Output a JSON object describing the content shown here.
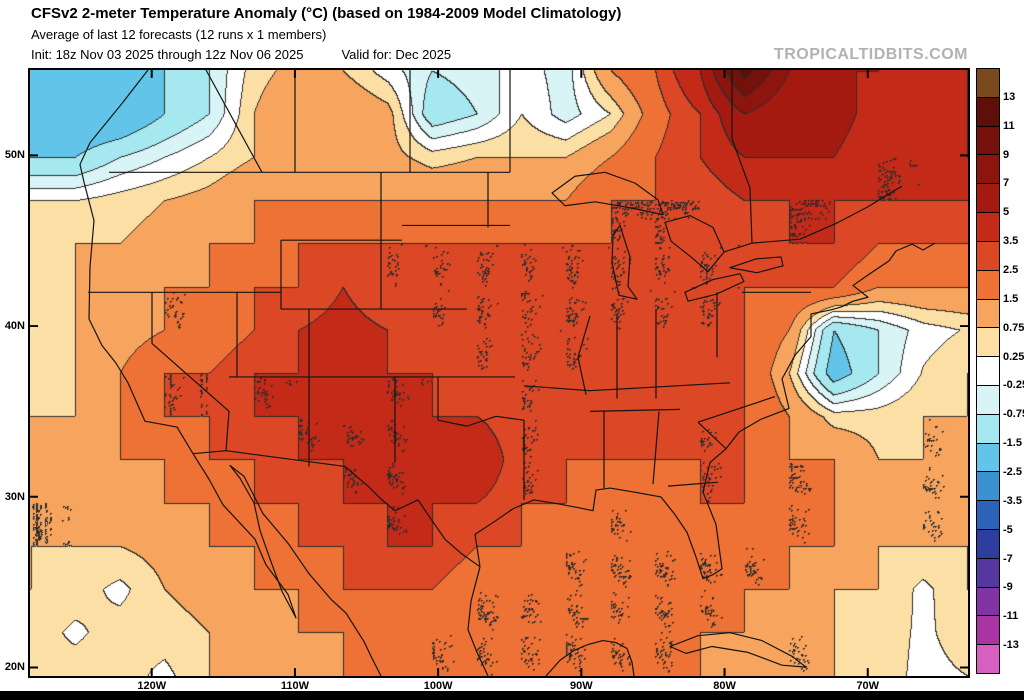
{
  "header": {
    "title": "CFSv2 2-meter Temperature Anomaly (°C) (based on 1984-2009 Model Climatology)",
    "subtitle": "Average of last 12 forecasts (12 runs x 1 members)",
    "init_line": "Init: 18z Nov 03 2025 through 12z Nov 06 2025",
    "valid_line": "Valid for: Dec 2025",
    "watermark": "TROPICALTIDBITS.COM"
  },
  "axes": {
    "lat_ticks": [
      "50N",
      "40N",
      "30N",
      "20N"
    ],
    "lat_values": [
      50,
      40,
      30,
      20
    ],
    "lon_ticks": [
      "120W",
      "110W",
      "100W",
      "90W",
      "80W",
      "70W"
    ],
    "lon_values": [
      -120,
      -110,
      -100,
      -90,
      -80,
      -70
    ]
  },
  "colorbar": {
    "labels": [
      "13",
      "11",
      "9",
      "7",
      "5",
      "3.5",
      "2.5",
      "1.5",
      "0.75",
      "0.25",
      "-0.25",
      "-0.75",
      "-1.5",
      "-2.5",
      "-3.5",
      "-5",
      "-7",
      "-9",
      "-11",
      "-13"
    ],
    "colors": [
      "#7a4a1e",
      "#5e0f07",
      "#73110a",
      "#8c150d",
      "#a51a10",
      "#c32a18",
      "#dc4726",
      "#ee7135",
      "#f7a55e",
      "#fbdfa4",
      "#ffffff",
      "#d9f4f6",
      "#a5e8ef",
      "#62c4e8",
      "#3a92d0",
      "#2c63b8",
      "#2e3e9e",
      "#55379f",
      "#8135a5",
      "#ab34a4",
      "#d75fc0"
    ]
  },
  "chart_data": {
    "type": "heatmap",
    "title": "CFSv2 2-meter Temperature Anomaly (°C) (based on 1984-2009 Model Climatology)",
    "subtitle": "Average of last 12 forecasts (12 runs x 1 members)",
    "init": "18z Nov 03 2025 through 12z Nov 06 2025",
    "valid": "Dec 2025",
    "units": "°C",
    "region": "CONUS / North America",
    "lon_range": [
      -128.5,
      -63.0
    ],
    "lat_range": [
      19.5,
      55.0
    ],
    "levels": [
      13,
      11,
      9,
      7,
      5,
      3.5,
      2.5,
      1.5,
      0.75,
      0.25,
      -0.25,
      -0.75,
      -1.5,
      -2.5,
      -3.5,
      -5,
      -7,
      -9,
      -11,
      -13
    ],
    "palette": [
      "#7a4a1e",
      "#5e0f07",
      "#73110a",
      "#8c150d",
      "#a51a10",
      "#c32a18",
      "#dc4726",
      "#ee7135",
      "#f7a55e",
      "#fbdfa4",
      "#ffffff",
      "#d9f4f6",
      "#a5e8ef",
      "#62c4e8",
      "#3a92d0",
      "#2c63b8",
      "#2e3e9e",
      "#55379f",
      "#8135a5",
      "#ab34a4",
      "#d75fc0"
    ],
    "grid_nx": 22,
    "grid_ny": 15,
    "grid_order": "rows north to south, columns west to east",
    "values": [
      [
        -2.5,
        -2.5,
        -2,
        -1.5,
        -0.75,
        0.5,
        1,
        0.75,
        0,
        -0.75,
        -0.5,
        0,
        -0.5,
        1.5,
        2.5,
        5,
        12,
        7,
        5,
        5,
        4,
        5
      ],
      [
        -2,
        -2.5,
        -2.5,
        -1.5,
        -0.75,
        0.75,
        1.5,
        1.5,
        1,
        -1.25,
        -0.75,
        0.25,
        -0.5,
        0.25,
        2,
        3.5,
        7,
        5,
        6,
        4,
        4,
        5
      ],
      [
        -1.5,
        -1.5,
        -0.75,
        -0.25,
        0.25,
        0.75,
        1,
        1,
        1,
        0.5,
        0.75,
        0.75,
        0.75,
        1.5,
        2.5,
        3.5,
        5,
        5,
        5,
        3.5,
        3.5,
        5
      ],
      [
        0.25,
        0.25,
        0.5,
        0.75,
        1,
        1.5,
        1.5,
        1.5,
        1.5,
        1.5,
        1.5,
        1.5,
        1.5,
        2.5,
        2.5,
        2.5,
        3.5,
        3.5,
        3.5,
        3.5,
        3.5,
        3.5
      ],
      [
        0.5,
        0.75,
        0.75,
        1,
        1.5,
        1.5,
        2.5,
        2.5,
        2.5,
        2.5,
        2.5,
        2.5,
        2.5,
        2.5,
        2.5,
        2.5,
        2.5,
        3.5,
        3.5,
        2.5,
        2.5,
        2.5
      ],
      [
        0.5,
        0.75,
        1,
        1.5,
        1.5,
        2.5,
        2.5,
        3.5,
        2.5,
        2.5,
        2.5,
        2.5,
        2.5,
        2.5,
        2.5,
        2.5,
        2.5,
        2.5,
        2.5,
        1.5,
        1.5,
        1.5
      ],
      [
        0.5,
        0.75,
        1,
        1.5,
        1.5,
        2.5,
        3.5,
        4,
        3.5,
        2.5,
        2.5,
        2.5,
        2.5,
        2.5,
        2.5,
        2.5,
        2.5,
        1.5,
        -1.5,
        -0.75,
        0,
        0.3
      ],
      [
        0.5,
        0.75,
        1.5,
        2.5,
        2.5,
        3.5,
        3.5,
        5,
        3.5,
        3.5,
        2.5,
        2.5,
        2.5,
        2.5,
        3.5,
        3.5,
        2.5,
        0.75,
        -2,
        -0.75,
        0.3,
        0.75
      ],
      [
        0.75,
        0.75,
        1.5,
        2.5,
        2.5,
        3.5,
        3.5,
        3.5,
        3.5,
        3.5,
        3.5,
        2.5,
        2.5,
        3.5,
        3.5,
        2.5,
        2.5,
        1.5,
        0.5,
        0.5,
        0.75,
        0.75
      ],
      [
        0.75,
        1,
        1.5,
        1.5,
        2.5,
        2.5,
        3.5,
        3.5,
        3.5,
        3.5,
        5,
        2.5,
        2.5,
        2.5,
        2.5,
        2.5,
        2.5,
        1.5,
        1.5,
        0.75,
        0.75,
        0.75
      ],
      [
        0.75,
        0.75,
        1,
        1.5,
        1.5,
        2.5,
        2.5,
        3.5,
        3.5,
        3.5,
        3.5,
        2.5,
        2.5,
        1.5,
        1.5,
        2.5,
        2.5,
        1.5,
        1.5,
        1.5,
        0.75,
        0.75
      ],
      [
        0.75,
        0.75,
        0.75,
        1,
        1.5,
        1.5,
        2.5,
        2.5,
        3.5,
        3.5,
        2.5,
        2.5,
        1.5,
        1.5,
        1.5,
        1.5,
        1.5,
        1.5,
        1.5,
        0.75,
        0.75,
        0.75
      ],
      [
        0.75,
        0.5,
        0.1,
        0.75,
        1,
        1.5,
        1.5,
        2.5,
        2.5,
        2.5,
        1.5,
        1.5,
        1.5,
        1.5,
        1.5,
        1.5,
        1.5,
        1.5,
        0.75,
        0.75,
        0.1,
        0.75
      ],
      [
        0.5,
        0.15,
        0.5,
        0.5,
        0.75,
        1,
        1.5,
        1.5,
        2.5,
        1.5,
        1.5,
        1.5,
        1.5,
        1.5,
        1.5,
        1.5,
        1.5,
        0.75,
        0.75,
        0.5,
        0.15,
        0.5
      ],
      [
        0.25,
        0.5,
        0.5,
        0.1,
        0.75,
        0.75,
        1,
        1.5,
        2.5,
        1.5,
        1.5,
        1.5,
        1.5,
        1.5,
        1.5,
        1.5,
        0.75,
        0.75,
        0.75,
        0.5,
        0.1,
        0.25
      ]
    ]
  }
}
